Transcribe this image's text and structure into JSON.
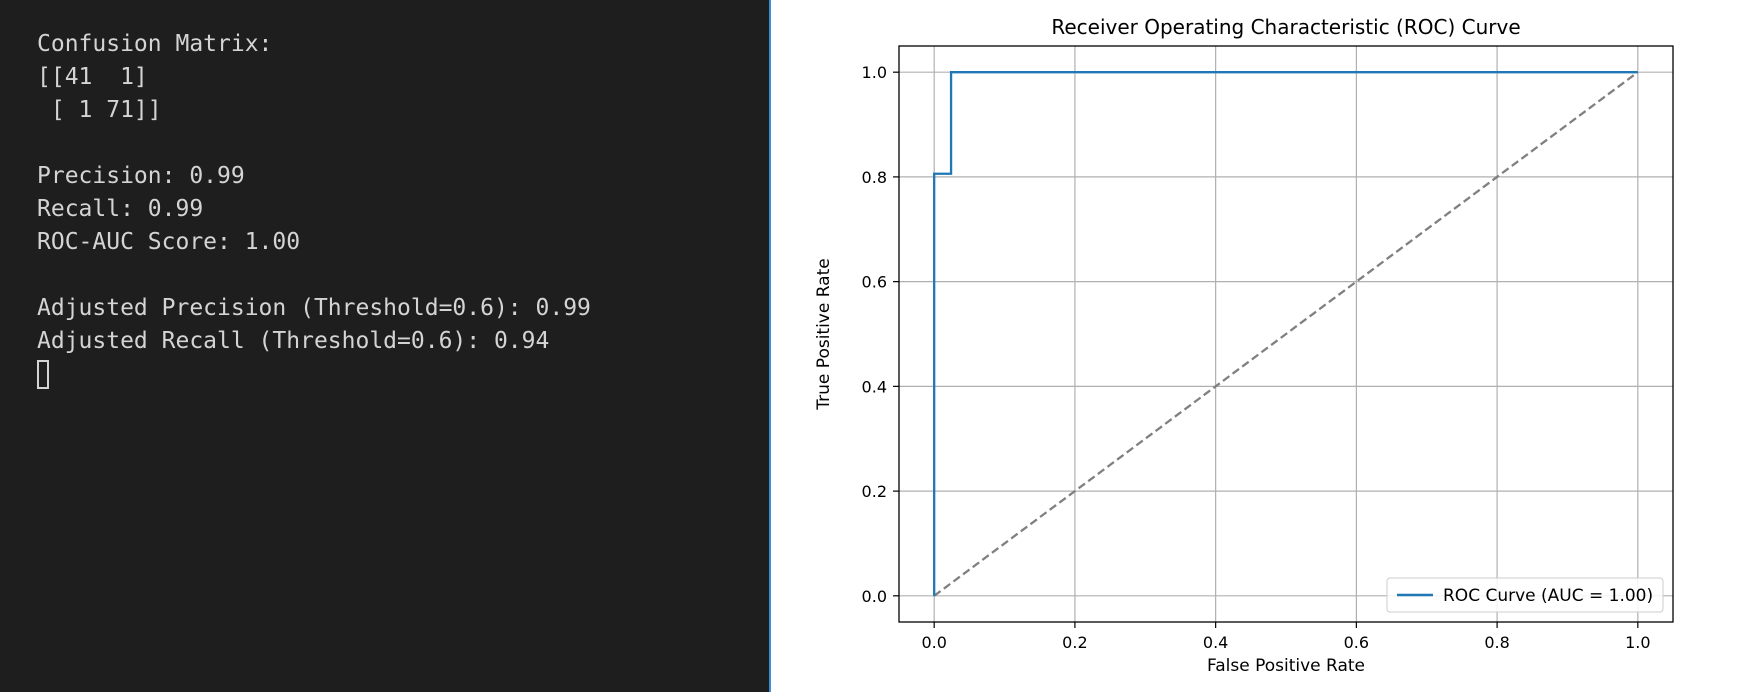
{
  "terminal": {
    "lines": [
      "Confusion Matrix:",
      "[[41  1]",
      " [ 1 71]]",
      "",
      "Precision: 0.99",
      "Recall: 0.99",
      "ROC-AUC Score: 1.00",
      "",
      "Adjusted Precision (Threshold=0.6): 0.99",
      "Adjusted Recall (Threshold=0.6): 0.94"
    ]
  },
  "chart_data": {
    "type": "line",
    "title": "Receiver Operating Characteristic (ROC) Curve",
    "xlabel": "False Positive Rate",
    "ylabel": "True Positive Rate",
    "xlim": [
      -0.05,
      1.05
    ],
    "ylim": [
      -0.05,
      1.05
    ],
    "xticks": [
      0.0,
      0.2,
      0.4,
      0.6,
      0.8,
      1.0
    ],
    "yticks": [
      0.0,
      0.2,
      0.4,
      0.6,
      0.8,
      1.0
    ],
    "xtick_labels": [
      "0.0",
      "0.2",
      "0.4",
      "0.6",
      "0.8",
      "1.0"
    ],
    "ytick_labels": [
      "0.0",
      "0.2",
      "0.4",
      "0.6",
      "0.8",
      "1.0"
    ],
    "grid": true,
    "legend_position": "lower-right",
    "series": [
      {
        "name": "ROC Curve (AUC = 1.00)",
        "color": "#1f77b4",
        "style": "solid",
        "x": [
          0.0,
          0.0,
          0.024,
          0.024,
          1.0
        ],
        "y": [
          0.0,
          0.806,
          0.806,
          1.0,
          1.0
        ]
      },
      {
        "name": "",
        "color": "#808080",
        "style": "dashed",
        "x": [
          0.0,
          1.0
        ],
        "y": [
          0.0,
          1.0
        ]
      }
    ]
  }
}
